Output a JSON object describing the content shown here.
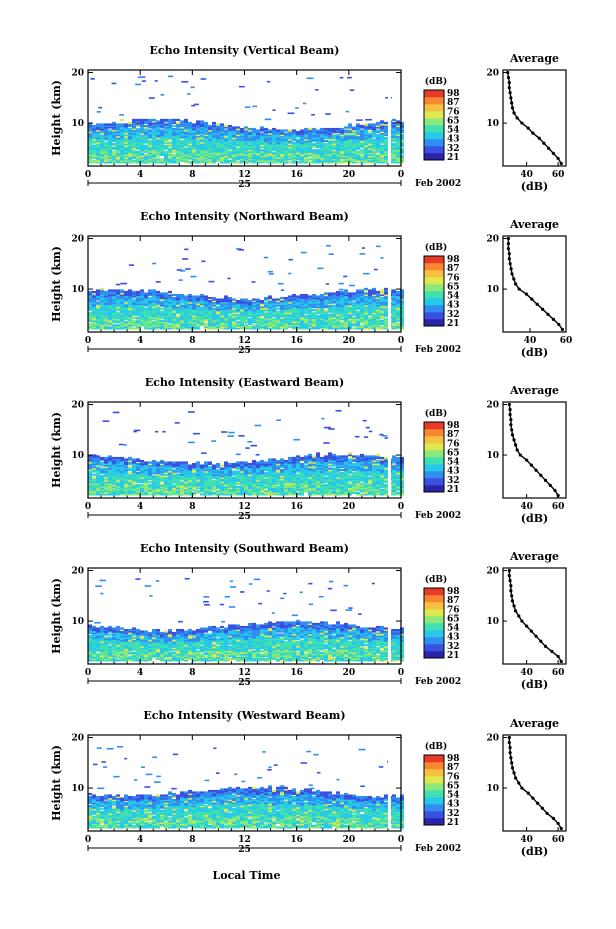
{
  "figure": {
    "xlabel": "Local Time",
    "date_label": "Feb 2002",
    "day_label": "25",
    "colorbar_unit": "(dB)",
    "average_title": "Average",
    "average_xlabel": "(dB)"
  },
  "colors": {
    "scale": [
      "#2a24a8",
      "#3a50e0",
      "#2e8ff0",
      "#28c8e8",
      "#40e0b0",
      "#8ce878",
      "#e0e850",
      "#f8c040",
      "#f88830",
      "#e83a28"
    ],
    "line": "#000000"
  },
  "chart_data": [
    {
      "type": "heatmap",
      "title": "Echo Intensity (Vertical Beam)",
      "ylabel": "Height (km)",
      "x_ticks": [
        "0",
        "4",
        "8",
        "12",
        "16",
        "20",
        "0"
      ],
      "y_ticks": [
        "20",
        "10"
      ],
      "xlim": [
        0,
        24
      ],
      "ylim": [
        1.5,
        20.5
      ],
      "colorbar_ticks": [
        "98",
        "87",
        "76",
        "65",
        "54",
        "43",
        "32",
        "21"
      ],
      "cloud_top_km": 9.5,
      "gap_hour": 23.0,
      "average_profile": {
        "xlim": [
          25,
          65
        ],
        "x_ticks": [
          "40",
          "60"
        ],
        "y_ticks": [
          "20",
          "10"
        ],
        "height_km": [
          2,
          3,
          4,
          5,
          6,
          7,
          8,
          9,
          10,
          11,
          12,
          13,
          14,
          15,
          16,
          17,
          18,
          19,
          20
        ],
        "db": [
          62,
          60,
          57,
          54,
          51,
          48,
          44,
          41,
          37,
          34,
          32,
          31,
          30.5,
          30,
          29.5,
          29,
          29,
          28.5,
          28
        ]
      }
    },
    {
      "type": "heatmap",
      "title": "Echo Intensity (Northward Beam)",
      "ylabel": "Height (km)",
      "x_ticks": [
        "0",
        "4",
        "8",
        "12",
        "16",
        "20",
        "0"
      ],
      "y_ticks": [
        "20",
        "10"
      ],
      "xlim": [
        0,
        24
      ],
      "ylim": [
        1.5,
        20.5
      ],
      "colorbar_ticks": [
        "98",
        "87",
        "76",
        "65",
        "54",
        "43",
        "32",
        "21"
      ],
      "cloud_top_km": 8.8,
      "gap_hour": 23.0,
      "average_profile": {
        "xlim": [
          25,
          60
        ],
        "x_ticks": [
          "40",
          "60"
        ],
        "y_ticks": [
          "20",
          "10"
        ],
        "height_km": [
          2,
          3,
          4,
          5,
          6,
          7,
          8,
          9,
          10,
          11,
          12,
          13,
          14,
          15,
          16,
          17,
          18,
          19,
          20
        ],
        "db": [
          58,
          56,
          53,
          50,
          47,
          44,
          41,
          38,
          34,
          32,
          31,
          30,
          29.5,
          29,
          28.5,
          28.5,
          28,
          28,
          28
        ]
      }
    },
    {
      "type": "heatmap",
      "title": "Echo Intensity (Eastward Beam)",
      "ylabel": "Height (km)",
      "x_ticks": [
        "0",
        "4",
        "8",
        "12",
        "16",
        "20",
        "0"
      ],
      "y_ticks": [
        "20",
        "10"
      ],
      "xlim": [
        0,
        24
      ],
      "ylim": [
        1.5,
        20.5
      ],
      "colorbar_ticks": [
        "98",
        "87",
        "76",
        "65",
        "54",
        "43",
        "32",
        "21"
      ],
      "cloud_top_km": 9.0,
      "gap_hour": 23.0,
      "average_profile": {
        "xlim": [
          25,
          65
        ],
        "x_ticks": [
          "40",
          "60"
        ],
        "y_ticks": [
          "20",
          "10"
        ],
        "height_km": [
          2,
          3,
          4,
          5,
          6,
          7,
          8,
          9,
          10,
          11,
          12,
          13,
          14,
          15,
          16,
          17,
          18,
          19,
          20
        ],
        "db": [
          60,
          58,
          55,
          52,
          49,
          46,
          43,
          40,
          36,
          34,
          33,
          32,
          31,
          30.5,
          30,
          30,
          29.5,
          29.5,
          29
        ]
      }
    },
    {
      "type": "heatmap",
      "title": "Echo Intensity (Southward Beam)",
      "ylabel": "Height (km)",
      "x_ticks": [
        "0",
        "4",
        "8",
        "12",
        "16",
        "20",
        "0"
      ],
      "y_ticks": [
        "20",
        "10"
      ],
      "xlim": [
        0,
        24
      ],
      "ylim": [
        1.5,
        20.5
      ],
      "colorbar_ticks": [
        "98",
        "87",
        "76",
        "65",
        "54",
        "43",
        "32",
        "21"
      ],
      "cloud_top_km": 8.8,
      "gap_hour": 23.0,
      "average_profile": {
        "xlim": [
          25,
          65
        ],
        "x_ticks": [
          "40",
          "60"
        ],
        "y_ticks": [
          "20",
          "10"
        ],
        "height_km": [
          2,
          3,
          4,
          5,
          6,
          7,
          8,
          9,
          10,
          11,
          12,
          13,
          14,
          15,
          16,
          17,
          18,
          19,
          20
        ],
        "db": [
          62,
          60,
          56,
          52,
          49,
          46,
          43,
          40,
          37,
          35,
          33,
          32,
          31,
          30.5,
          30,
          30,
          29.5,
          29,
          29
        ]
      }
    },
    {
      "type": "heatmap",
      "title": "Echo Intensity (Westward Beam)",
      "ylabel": "Height (km)",
      "x_ticks": [
        "0",
        "4",
        "8",
        "12",
        "16",
        "20",
        "0"
      ],
      "y_ticks": [
        "20",
        "10"
      ],
      "xlim": [
        0,
        24
      ],
      "ylim": [
        1.5,
        20.5
      ],
      "colorbar_ticks": [
        "98",
        "87",
        "76",
        "65",
        "54",
        "43",
        "32",
        "21"
      ],
      "cloud_top_km": 9.0,
      "gap_hour": 23.0,
      "average_profile": {
        "xlim": [
          25,
          65
        ],
        "x_ticks": [
          "40",
          "60"
        ],
        "y_ticks": [
          "20",
          "10"
        ],
        "height_km": [
          2,
          3,
          4,
          5,
          6,
          7,
          8,
          9,
          10,
          11,
          12,
          13,
          14,
          15,
          16,
          17,
          18,
          19,
          20
        ],
        "db": [
          62,
          60,
          57,
          53,
          50,
          47,
          44,
          41,
          37,
          35,
          33,
          32,
          31,
          30.5,
          30,
          29.5,
          29.5,
          29,
          29
        ]
      }
    }
  ]
}
